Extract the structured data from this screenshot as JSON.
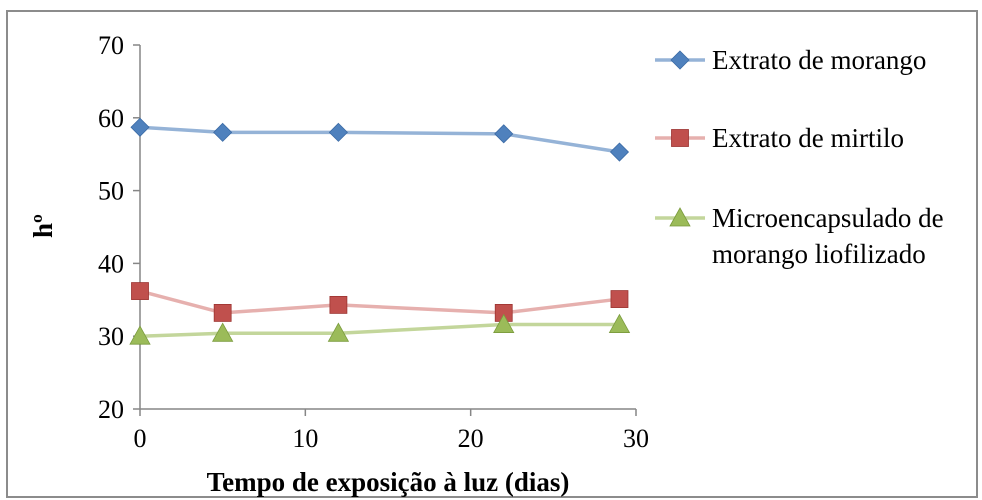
{
  "chart_data": {
    "type": "line",
    "xlabel": "Tempo de exposição à luz (dias)",
    "ylabel": "hº",
    "xlim": [
      0,
      30
    ],
    "ylim": [
      20,
      70
    ],
    "xticks": [
      0,
      10,
      20,
      30
    ],
    "yticks": [
      20,
      30,
      40,
      50,
      60,
      70
    ],
    "grid": false,
    "legend_position": "right",
    "x": [
      0,
      5,
      12,
      22,
      29
    ],
    "series": [
      {
        "name": "Extrato de morango",
        "values": [
          58.7,
          58.0,
          58.0,
          57.8,
          55.3
        ],
        "color": "#4f81bd",
        "line_color": "#95b3d7",
        "marker": "diamond"
      },
      {
        "name": "Extrato de mirtilo",
        "values": [
          36.2,
          33.2,
          34.3,
          33.2,
          35.1
        ],
        "color": "#c0504d",
        "line_color": "#e6b0ae",
        "marker": "square"
      },
      {
        "name": "Microencapsulado de morango liofilizado",
        "values": [
          30.0,
          30.4,
          30.4,
          31.6,
          31.6
        ],
        "color": "#9bbb59",
        "line_color": "#c3d69b",
        "marker": "triangle"
      }
    ],
    "legend_lines": [
      [
        "Extrato de morango"
      ],
      [
        "Extrato de mirtilo"
      ],
      [
        "Microencapsulado de",
        "morango liofilizado"
      ]
    ]
  }
}
